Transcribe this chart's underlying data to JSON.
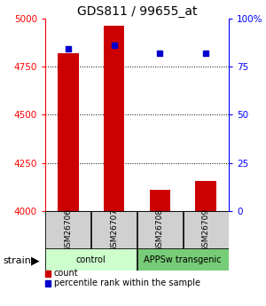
{
  "title": "GDS811 / 99655_at",
  "samples": [
    "GSM26706",
    "GSM26707",
    "GSM26708",
    "GSM26709"
  ],
  "counts": [
    4820,
    4960,
    4110,
    4155
  ],
  "percentiles": [
    84,
    86,
    82,
    82
  ],
  "ylim_left": [
    4000,
    5000
  ],
  "ylim_right": [
    0,
    100
  ],
  "yticks_left": [
    4000,
    4250,
    4500,
    4750,
    5000
  ],
  "yticks_right": [
    0,
    25,
    50,
    75,
    100
  ],
  "ytick_labels_right": [
    "0",
    "25",
    "50",
    "75",
    "100%"
  ],
  "bar_color": "#cc0000",
  "dot_color": "#0000cc",
  "bar_width": 0.45,
  "groups": [
    {
      "label": "control",
      "indices": [
        0,
        1
      ],
      "color": "#ccffcc"
    },
    {
      "label": "APPSw transgenic",
      "indices": [
        2,
        3
      ],
      "color": "#77cc77"
    }
  ],
  "strain_label": "strain",
  "legend_count_label": "count",
  "legend_pct_label": "percentile rank within the sample",
  "title_fontsize": 10,
  "tick_fontsize": 7.5,
  "sample_fontsize": 6.5,
  "group_fontsize": 7,
  "legend_fontsize": 7
}
